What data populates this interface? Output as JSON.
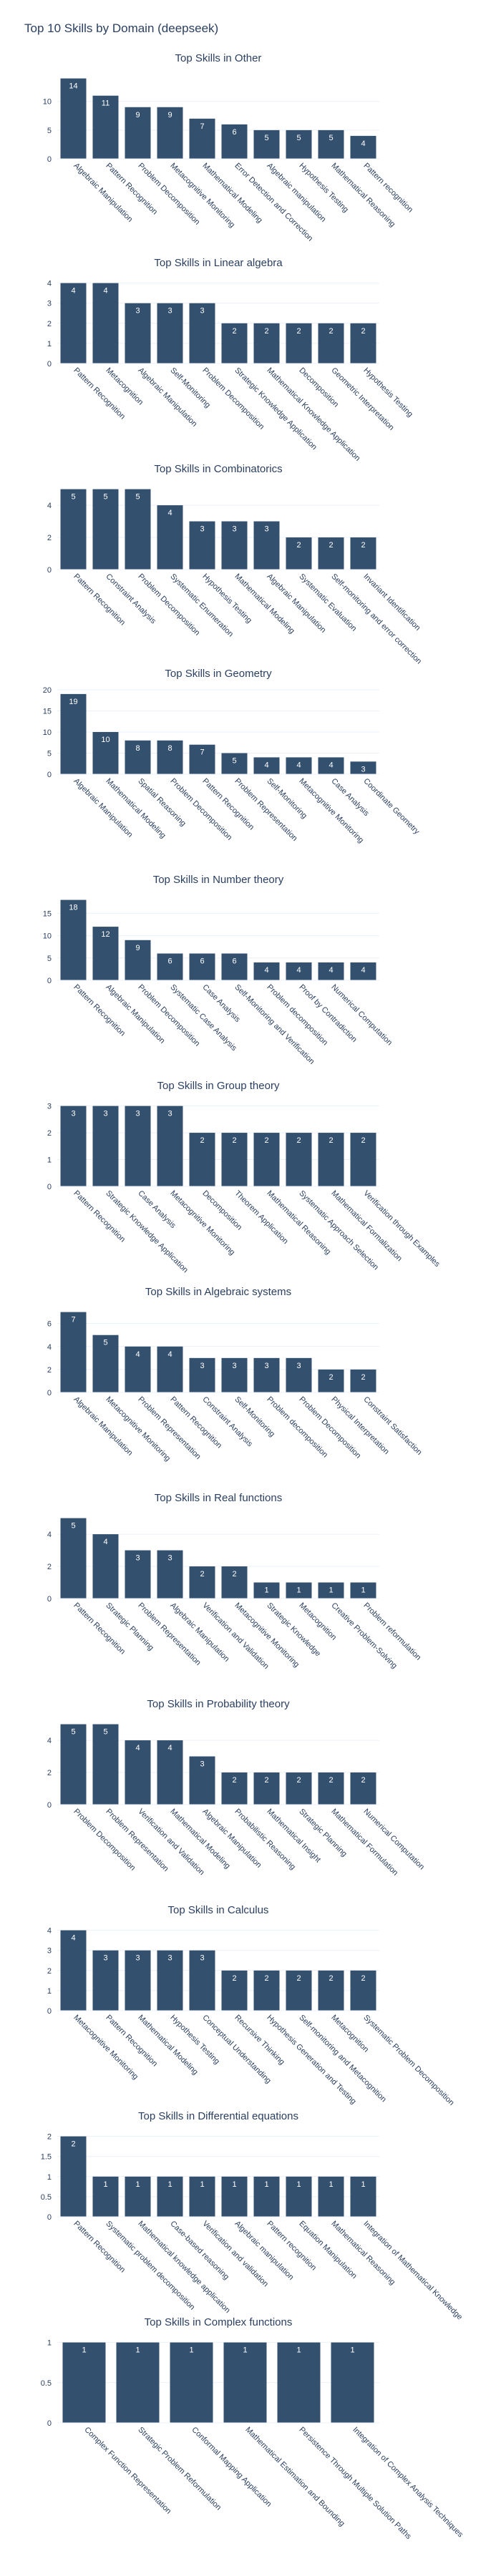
{
  "page": {
    "title": "Top 10 Skills by Domain (deepseek)"
  },
  "colors": {
    "bar": "#34506f",
    "grid": "#ebf0f8",
    "axis_text": "#2a3f5f",
    "label_text": "#ffffff"
  },
  "chart_data": [
    {
      "type": "bar",
      "title": "Top Skills in Other",
      "categories": [
        "Algebraic Manipulation",
        "Pattern Recognition",
        "Problem Decomposition",
        "Metacognitive Monitoring",
        "Mathematical Modeling",
        "Error Detection and Correction",
        "Algebraic manipulation",
        "Hypothesis Testing",
        "Mathematical Reasoning",
        "Pattern recognition"
      ],
      "values": [
        14,
        11,
        9,
        9,
        7,
        6,
        5,
        5,
        5,
        4
      ],
      "ylim": [
        0,
        14.7
      ],
      "yticks": [
        0,
        5,
        10
      ]
    },
    {
      "type": "bar",
      "title": "Top Skills in Linear algebra",
      "categories": [
        "Pattern Recognition",
        "Metacognition",
        "Algebraic Manipulation",
        "Self-Monitoring",
        "Problem Decomposition",
        "Strategic Knowledge Application",
        "Mathematical Knowledge Application",
        "Decomposition",
        "Geometric Interpretation",
        "Hypothesis Testing"
      ],
      "values": [
        4,
        4,
        3,
        3,
        3,
        2,
        2,
        2,
        2,
        2
      ],
      "ylim": [
        0,
        4.2
      ],
      "yticks": [
        0,
        1,
        2,
        3,
        4
      ]
    },
    {
      "type": "bar",
      "title": "Top Skills in Combinatorics",
      "categories": [
        "Pattern Recognition",
        "Constraint Analysis",
        "Problem Decomposition",
        "Systematic Enumeration",
        "Hypothesis Testing",
        "Mathematical Modeling",
        "Algebraic Manipulation",
        "Systematic Evaluation",
        "Self-monitoring and error correction",
        "Invariant Identification"
      ],
      "values": [
        5,
        5,
        5,
        4,
        3,
        3,
        3,
        2,
        2,
        2
      ],
      "ylim": [
        0,
        5.25
      ],
      "yticks": [
        0,
        2,
        4
      ]
    },
    {
      "type": "bar",
      "title": "Top Skills in Geometry",
      "categories": [
        "Algebraic Manipulation",
        "Mathematical Modeling",
        "Spatial Reasoning",
        "Problem Decomposition",
        "Pattern Recognition",
        "Problem Representation",
        "Self-Monitoring",
        "Metacognitive Monitoring",
        "Case Analysis",
        "Coordinate Geometry"
      ],
      "values": [
        19,
        10,
        8,
        8,
        7,
        5,
        4,
        4,
        4,
        3
      ],
      "ylim": [
        0,
        20
      ],
      "yticks": [
        0,
        5,
        10,
        15,
        20
      ]
    },
    {
      "type": "bar",
      "title": "Top Skills in Number theory",
      "categories": [
        "Pattern Recognition",
        "Algebraic Manipulation",
        "Problem Decomposition",
        "Systematic Case Analysis",
        "Case Analysis",
        "Self-Monitoring and Verification",
        "Problem decomposition",
        "Proof by Contradiction",
        "Numerical Computation",
        ""
      ],
      "values": [
        18,
        12,
        9,
        6,
        6,
        6,
        4,
        4,
        4,
        4
      ],
      "ylim": [
        0,
        18.9
      ],
      "yticks": [
        0,
        5,
        10,
        15
      ]
    },
    {
      "type": "bar",
      "title": "Top Skills in Group theory",
      "categories": [
        "Pattern Recognition",
        "Strategic Knowledge Application",
        "Case Analysis",
        "Metacognitive Monitoring",
        "Decomposition",
        "Theorem Application",
        "Mathematical Reasoning",
        "Systematic Approach Selection",
        "Mathematical Formalization",
        "Verification through Examples"
      ],
      "values": [
        3,
        3,
        3,
        3,
        2,
        2,
        2,
        2,
        2,
        2
      ],
      "ylim": [
        0,
        3.15
      ],
      "yticks": [
        0,
        1,
        2,
        3
      ]
    },
    {
      "type": "bar",
      "title": "Top Skills in Algebraic systems",
      "categories": [
        "Algebraic Manipulation",
        "Metacognitive Monitoring",
        "Problem Representation",
        "Pattern Recognition",
        "Constraint Analysis",
        "Self-Monitoring",
        "Problem decomposition",
        "Problem Decomposition",
        "Physical Interpretation",
        "Constraint Satisfaction"
      ],
      "values": [
        7,
        5,
        4,
        4,
        3,
        3,
        3,
        3,
        2,
        2
      ],
      "ylim": [
        0,
        7.35
      ],
      "yticks": [
        0,
        2,
        4,
        6
      ]
    },
    {
      "type": "bar",
      "title": "Top Skills in Real functions",
      "categories": [
        "Pattern Recognition",
        "Strategic Planning",
        "Problem Representation",
        "Algebraic Manipulation",
        "Verification and Validation",
        "Metacognitive Monitoring",
        "Strategic Knowledge",
        "Metacognition",
        "Creative Problem-Solving",
        "Problem reformulation"
      ],
      "values": [
        5,
        4,
        3,
        3,
        2,
        2,
        1,
        1,
        1,
        1
      ],
      "ylim": [
        0,
        5.25
      ],
      "yticks": [
        0,
        2,
        4
      ]
    },
    {
      "type": "bar",
      "title": "Top Skills in Probability theory",
      "categories": [
        "Problem Decomposition",
        "Problem Representation",
        "Verification and Validation",
        "Mathematical Modeling",
        "Algebraic Manipulation",
        "Probabilistic Reasoning",
        "Mathematical Insight",
        "Strategic Planning",
        "Mathematical Formulation",
        "Numerical Computation"
      ],
      "values": [
        5,
        5,
        4,
        4,
        3,
        2,
        2,
        2,
        2,
        2
      ],
      "ylim": [
        0,
        5.25
      ],
      "yticks": [
        0,
        2,
        4
      ]
    },
    {
      "type": "bar",
      "title": "Top Skills in Calculus",
      "categories": [
        "Metacognitive Monitoring",
        "Pattern Recognition",
        "Mathematical Modeling",
        "Hypothesis Testing",
        "Conceptual Understanding",
        "Recursive Thinking",
        "Hypothesis Generation and Testing",
        "Self-monitoring and Metacognition",
        "Metacognition",
        "Systematic Problem Decomposition"
      ],
      "values": [
        4,
        3,
        3,
        3,
        3,
        2,
        2,
        2,
        2,
        2
      ],
      "ylim": [
        0,
        4.2
      ],
      "yticks": [
        0,
        1,
        2,
        3,
        4
      ]
    },
    {
      "type": "bar",
      "title": "Top Skills in Differential equations",
      "categories": [
        "Pattern Recognition",
        "Systematic problem decomposition",
        "Mathematical knowledge application",
        "Case-based reasoning",
        "Verification and validation",
        "Algebraic manipulation",
        "Pattern recognition",
        "Equation Manipulation",
        "Mathematical Reasoning",
        "Integration of Mathematical Knowledge"
      ],
      "values": [
        2,
        1,
        1,
        1,
        1,
        1,
        1,
        1,
        1,
        1
      ],
      "ylim": [
        0,
        2.1
      ],
      "yticks": [
        0,
        0.5,
        1,
        1.5,
        2
      ]
    },
    {
      "type": "bar",
      "title": "Top Skills in Complex functions",
      "categories": [
        "Complex Function Representation",
        "Strategic Problem Reformulation",
        "Conformal Mapping Application",
        "Mathematical Estimation and Bounding",
        "Persistence Through Multiple Solution Paths",
        "Integration of Complex Analysis Techniques"
      ],
      "values": [
        1,
        1,
        1,
        1,
        1,
        1
      ],
      "ylim": [
        0,
        1.05
      ],
      "yticks": [
        0,
        0.5,
        1
      ]
    }
  ]
}
